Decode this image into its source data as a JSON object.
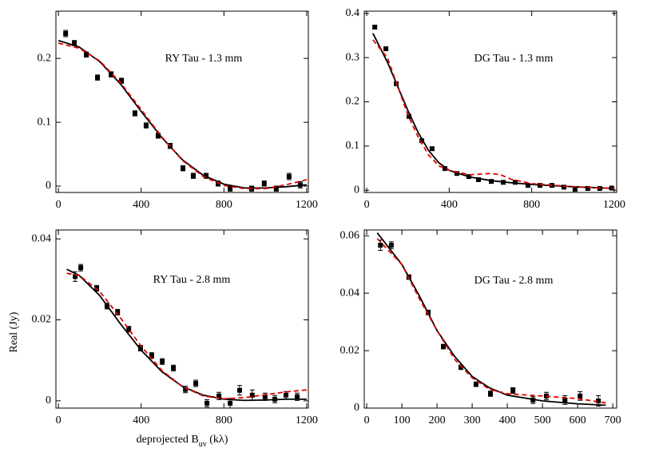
{
  "chart_data": [
    {
      "type": "scatter",
      "annotation": "RY Tau - 1.3 mm",
      "xlim": [
        -12,
        1208
      ],
      "ylim": [
        -0.01,
        0.274
      ],
      "xticks": [
        0,
        400,
        800,
        1200
      ],
      "yticks": [
        0,
        0.1,
        0.2
      ],
      "series": [
        {
          "style": "points",
          "color": "#000000",
          "x": [
            35,
            77,
            135,
            189,
            255,
            305,
            370,
            424,
            482,
            540,
            602,
            652,
            714,
            772,
            830,
            934,
            995,
            1053,
            1115,
            1169
          ],
          "values": [
            0.239,
            0.224,
            0.206,
            0.17,
            0.175,
            0.165,
            0.114,
            0.095,
            0.079,
            0.063,
            0.028,
            0.016,
            0.016,
            0.004,
            -0.004,
            -0.004,
            0.004,
            -0.004,
            0.015,
            0.002
          ],
          "errors": [
            0.005,
            0.004,
            0.004,
            0.004,
            0.004,
            0.004,
            0.004,
            0.004,
            0.004,
            0.004,
            0.004,
            0.004,
            0.004,
            0.004,
            0.004,
            0.004,
            0.004,
            0.004,
            0.005,
            0.005
          ]
        },
        {
          "style": "solid",
          "color": "#000000",
          "x": [
            0,
            100,
            200,
            300,
            400,
            500,
            600,
            700,
            800,
            900,
            1000,
            1100,
            1200
          ],
          "values": [
            0.228,
            0.218,
            0.195,
            0.16,
            0.117,
            0.076,
            0.041,
            0.017,
            0.003,
            -0.003,
            -0.003,
            -0.001,
            0.002
          ]
        },
        {
          "style": "dashed",
          "color": "#e00000",
          "x": [
            0,
            100,
            200,
            300,
            400,
            500,
            600,
            700,
            800,
            900,
            1000,
            1100,
            1200
          ],
          "values": [
            0.224,
            0.216,
            0.196,
            0.162,
            0.12,
            0.077,
            0.04,
            0.015,
            0.001,
            -0.004,
            -0.004,
            0.002,
            0.01
          ]
        }
      ]
    },
    {
      "type": "scatter",
      "annotation": "DG Tau - 1.3 mm",
      "xlim": [
        -12,
        1212
      ],
      "ylim": [
        -0.005,
        0.405
      ],
      "xticks": [
        0,
        400,
        800,
        1200
      ],
      "yticks": [
        0,
        0.1,
        0.2,
        0.3,
        0.4
      ],
      "series": [
        {
          "style": "points",
          "color": "#000000",
          "x": [
            39,
            93,
            143,
            205,
            267,
            317,
            379,
            437,
            495,
            542,
            604,
            662,
            720,
            782,
            840,
            898,
            956,
            1010,
            1072,
            1130,
            1188
          ],
          "values": [
            0.369,
            0.32,
            0.241,
            0.167,
            0.112,
            0.094,
            0.049,
            0.038,
            0.031,
            0.024,
            0.02,
            0.018,
            0.018,
            0.011,
            0.011,
            0.011,
            0.007,
            0.002,
            0.004,
            0.004,
            0.005
          ],
          "errors": [
            0.004,
            0.004,
            0.004,
            0.004,
            0.003,
            0.003,
            0.003,
            0.003,
            0.003,
            0.003,
            0.003,
            0.003,
            0.003,
            0.003,
            0.003,
            0.003,
            0.003,
            0.003,
            0.003,
            0.003,
            0.003
          ]
        },
        {
          "style": "solid",
          "color": "#000000",
          "x": [
            30,
            100,
            150,
            200,
            250,
            300,
            350,
            400,
            500,
            600,
            700,
            800,
            1000,
            1200
          ],
          "values": [
            0.355,
            0.29,
            0.235,
            0.18,
            0.13,
            0.09,
            0.062,
            0.045,
            0.03,
            0.022,
            0.017,
            0.013,
            0.008,
            0.004
          ]
        },
        {
          "style": "dashed",
          "color": "#e00000",
          "x": [
            30,
            100,
            150,
            200,
            250,
            300,
            350,
            400,
            500,
            600,
            650,
            700,
            800,
            1000,
            1200
          ],
          "values": [
            0.34,
            0.3,
            0.235,
            0.17,
            0.12,
            0.08,
            0.055,
            0.045,
            0.035,
            0.038,
            0.035,
            0.025,
            0.015,
            0.008,
            0.004
          ]
        }
      ]
    },
    {
      "type": "scatter",
      "annotation": "RY Tau - 2.8 mm",
      "ylabel": "Real (Jy)",
      "xlabel": [
        "deprojected B",
        "uv",
        " (kλ)"
      ],
      "xlim": [
        -12,
        1208
      ],
      "ylim": [
        -0.0018,
        0.0422
      ],
      "xticks": [
        0,
        400,
        800,
        1200
      ],
      "yticks": [
        0,
        0.02,
        0.04
      ],
      "series": [
        {
          "style": "points",
          "color": "#000000",
          "x": [
            81,
            108,
            185,
            235,
            286,
            340,
            397,
            451,
            502,
            556,
            614,
            664,
            718,
            776,
            830,
            876,
            937,
            999,
            1046,
            1100,
            1154
          ],
          "values": [
            0.0307,
            0.0329,
            0.0278,
            0.0234,
            0.0219,
            0.0177,
            0.013,
            0.0112,
            0.0097,
            0.0081,
            0.0028,
            0.0043,
            -0.0006,
            0.0012,
            -0.0006,
            0.0026,
            0.0014,
            0.001,
            0.0004,
            0.0014,
            0.001
          ],
          "errors": [
            0.0012,
            0.0008,
            0.0007,
            0.0007,
            0.0007,
            0.0007,
            0.0007,
            0.0007,
            0.0007,
            0.0007,
            0.0008,
            0.0008,
            0.0009,
            0.0009,
            0.0012,
            0.0012,
            0.0013,
            0.0009,
            0.0009,
            0.0009,
            0.0009
          ]
        },
        {
          "style": "solid",
          "color": "#000000",
          "x": [
            40,
            100,
            200,
            300,
            400,
            500,
            600,
            700,
            800,
            900,
            1000,
            1100,
            1200
          ],
          "values": [
            0.0325,
            0.031,
            0.026,
            0.019,
            0.0125,
            0.0072,
            0.0035,
            0.0014,
            0.0004,
            0.0001,
            0.0002,
            0.0004,
            0.0004
          ]
        },
        {
          "style": "dashed",
          "color": "#e00000",
          "x": [
            40,
            100,
            200,
            300,
            400,
            500,
            600,
            700,
            800,
            900,
            1000,
            1100,
            1200
          ],
          "values": [
            0.0315,
            0.031,
            0.027,
            0.0205,
            0.0135,
            0.0075,
            0.0035,
            0.0012,
            0.0005,
            0.0008,
            0.0015,
            0.0022,
            0.0027
          ]
        }
      ]
    },
    {
      "type": "scatter",
      "annotation": "DG Tau - 2.8 mm",
      "xlim": [
        -7,
        711
      ],
      "ylim": [
        0,
        0.062
      ],
      "xticks": [
        0,
        100,
        200,
        300,
        400,
        500,
        600,
        700
      ],
      "yticks": [
        0,
        0.02,
        0.04,
        0.06
      ],
      "series": [
        {
          "style": "points",
          "color": "#000000",
          "x": [
            39,
            70,
            120,
            175,
            218,
            268,
            311,
            352,
            416,
            473,
            511,
            564,
            607,
            659
          ],
          "values": [
            0.0567,
            0.0567,
            0.0456,
            0.0333,
            0.0214,
            0.0142,
            0.0083,
            0.005,
            0.0061,
            0.0028,
            0.0042,
            0.0028,
            0.0042,
            0.0025
          ],
          "errors": [
            0.0018,
            0.0012,
            0.0008,
            0.0008,
            0.0008,
            0.0008,
            0.0008,
            0.0009,
            0.001,
            0.0012,
            0.0013,
            0.0015,
            0.0015,
            0.0018
          ]
        },
        {
          "style": "solid",
          "color": "#000000",
          "x": [
            30,
            100,
            150,
            200,
            250,
            300,
            350,
            400,
            500,
            600,
            680
          ],
          "values": [
            0.061,
            0.05,
            0.039,
            0.027,
            0.018,
            0.011,
            0.007,
            0.0045,
            0.0025,
            0.0015,
            0.001
          ]
        },
        {
          "style": "dashed",
          "color": "#e00000",
          "x": [
            30,
            100,
            150,
            200,
            250,
            300,
            350,
            400,
            500,
            600,
            680
          ],
          "values": [
            0.059,
            0.05,
            0.038,
            0.027,
            0.017,
            0.0105,
            0.0065,
            0.005,
            0.0042,
            0.0033,
            0.0018
          ]
        }
      ]
    }
  ]
}
